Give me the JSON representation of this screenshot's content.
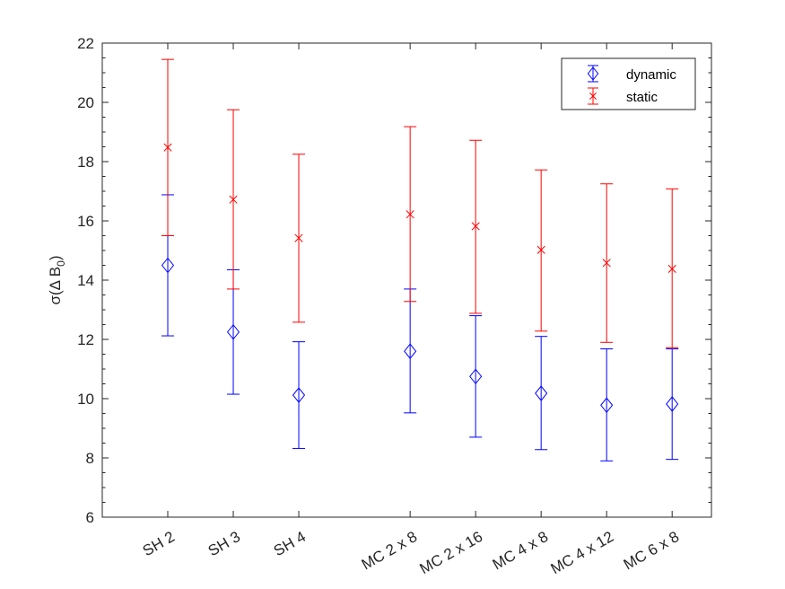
{
  "chart_data": {
    "type": "scatter",
    "ylabel": "σ(Δ B",
    "ylabel_subscript": "0",
    "ylabel_close": ")",
    "ylim": [
      6,
      22
    ],
    "yticks": [
      6,
      8,
      10,
      12,
      14,
      16,
      18,
      20,
      22
    ],
    "yticks_text": [
      "6",
      "8",
      "10",
      "12",
      "14",
      "16",
      "18",
      "20",
      "22"
    ],
    "categories": [
      "SH 2",
      "SH 3",
      "SH 4",
      "MC 2 x 8",
      "MC 2 x 16",
      "MC 4 x 8",
      "MC 4 x 12",
      "MC 6 x 8"
    ],
    "x_positions": [
      1,
      2,
      3,
      4.7,
      5.7,
      6.7,
      7.7,
      8.7
    ],
    "xlim": [
      0,
      9.3
    ],
    "grid": false,
    "legend_position": "top-right",
    "series": [
      {
        "name": "dynamic",
        "marker": "diamond",
        "color": "#0000ff",
        "values": [
          14.5,
          12.25,
          10.12,
          11.6,
          10.75,
          10.18,
          9.78,
          9.82
        ],
        "lower": [
          12.12,
          10.15,
          8.32,
          9.52,
          8.7,
          8.28,
          7.9,
          7.95
        ],
        "upper": [
          16.88,
          14.35,
          11.92,
          13.7,
          12.8,
          12.1,
          11.68,
          11.68
        ]
      },
      {
        "name": "static",
        "marker": "x",
        "color": "#ff0000",
        "values": [
          18.48,
          16.72,
          15.42,
          16.22,
          15.82,
          15.02,
          14.58,
          14.38
        ],
        "lower": [
          15.5,
          13.7,
          12.58,
          13.28,
          12.88,
          12.28,
          11.9,
          11.72
        ],
        "upper": [
          21.45,
          19.75,
          18.25,
          19.18,
          18.72,
          17.72,
          17.25,
          17.08
        ]
      }
    ]
  }
}
